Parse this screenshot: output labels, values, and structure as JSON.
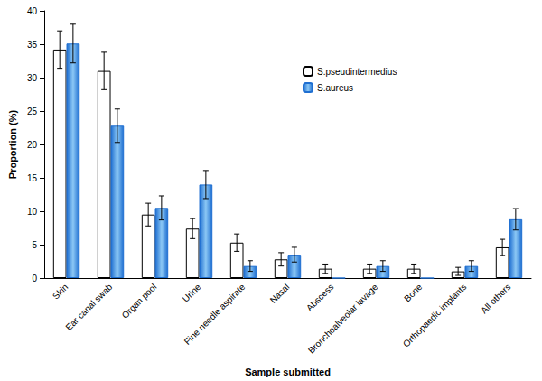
{
  "chart_data": {
    "type": "bar",
    "xlabel": "Sample submitted",
    "ylabel": "Proportion (%)",
    "categories": [
      "Skin",
      "Ear canal swab",
      "Organ pool",
      "Urine",
      "Fine needle aspirate",
      "Nasal",
      "Abscess",
      "Bronchoalveolar lavage",
      "Bone",
      "Orthopaedic implants",
      "All others"
    ],
    "series": [
      {
        "name": "S.pseudintermedius",
        "color": "#ffffff",
        "values": [
          34.2,
          31.0,
          9.5,
          7.4,
          5.3,
          2.8,
          1.4,
          1.4,
          1.4,
          1.0,
          4.6
        ],
        "errors": [
          2.8,
          2.8,
          1.7,
          1.5,
          1.3,
          1.0,
          0.7,
          0.7,
          0.7,
          0.6,
          1.2
        ]
      },
      {
        "name": "S.aureus",
        "color": "#1f6fd1",
        "values": [
          35.1,
          22.8,
          10.5,
          14.0,
          1.8,
          3.5,
          0,
          1.8,
          0,
          1.8,
          8.8
        ],
        "errors": [
          2.9,
          2.5,
          1.8,
          2.1,
          0.8,
          1.1,
          null,
          0.8,
          null,
          0.8,
          1.6
        ]
      }
    ],
    "ylim": [
      0,
      40
    ],
    "yticks": [
      0,
      5,
      10,
      15,
      20,
      25,
      30,
      35,
      40
    ],
    "grid": false,
    "legend": "top-right"
  }
}
